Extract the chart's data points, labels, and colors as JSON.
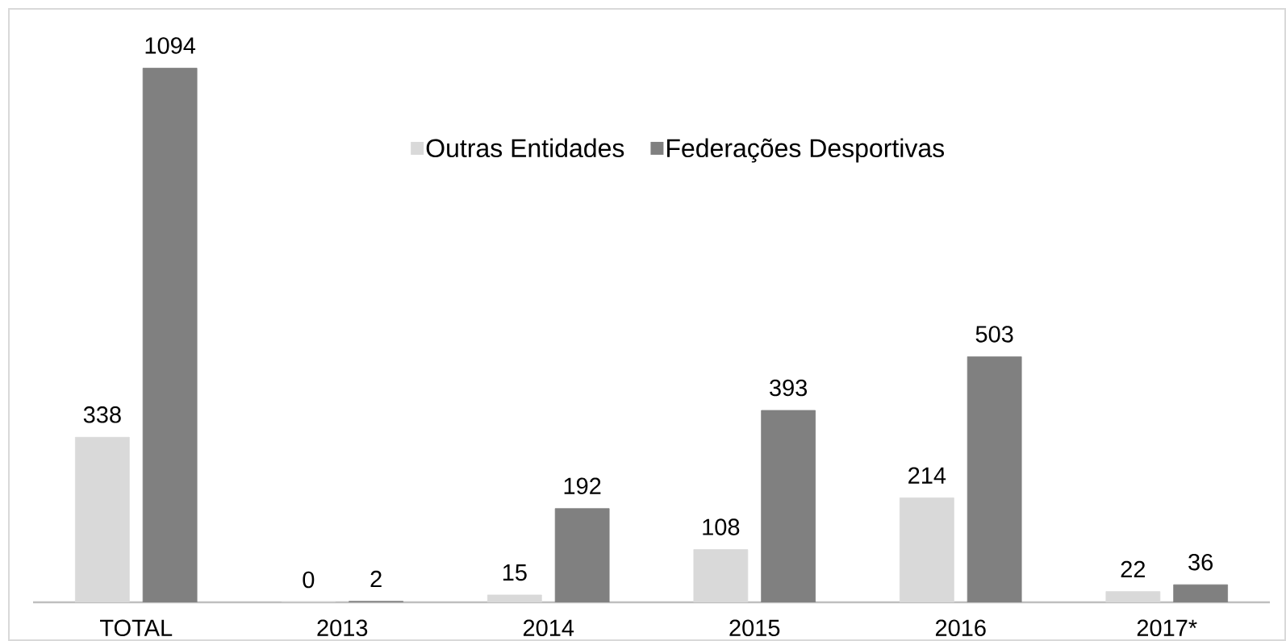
{
  "chart_data": {
    "type": "bar",
    "categories": [
      "TOTAL",
      "2013",
      "2014",
      "2015",
      "2016",
      "2017*"
    ],
    "series": [
      {
        "name": "Outras Entidades",
        "color": "#d9d9d9",
        "values": [
          338,
          0,
          15,
          108,
          214,
          22
        ]
      },
      {
        "name": "Federações Desportivas",
        "color": "#808080",
        "values": [
          1094,
          2,
          192,
          393,
          503,
          36
        ]
      }
    ],
    "data_labels": true,
    "legend": "top"
  }
}
